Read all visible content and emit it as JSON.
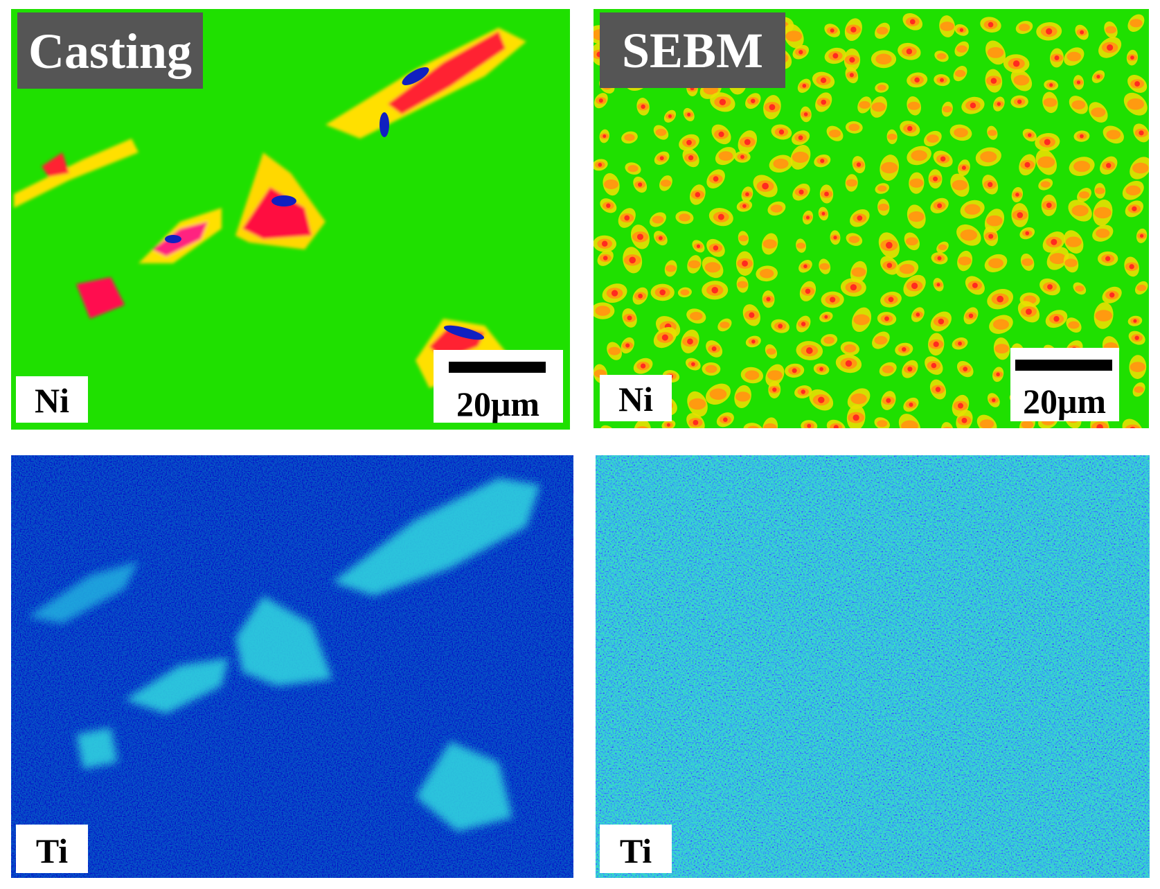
{
  "panels": [
    {
      "title": "Casting",
      "element": "Ni",
      "scale_bar": "20μm"
    },
    {
      "title": "SEBM",
      "element": "Ni",
      "scale_bar": "20μm"
    },
    {
      "element": "Ti"
    },
    {
      "element": "Ti"
    }
  ]
}
